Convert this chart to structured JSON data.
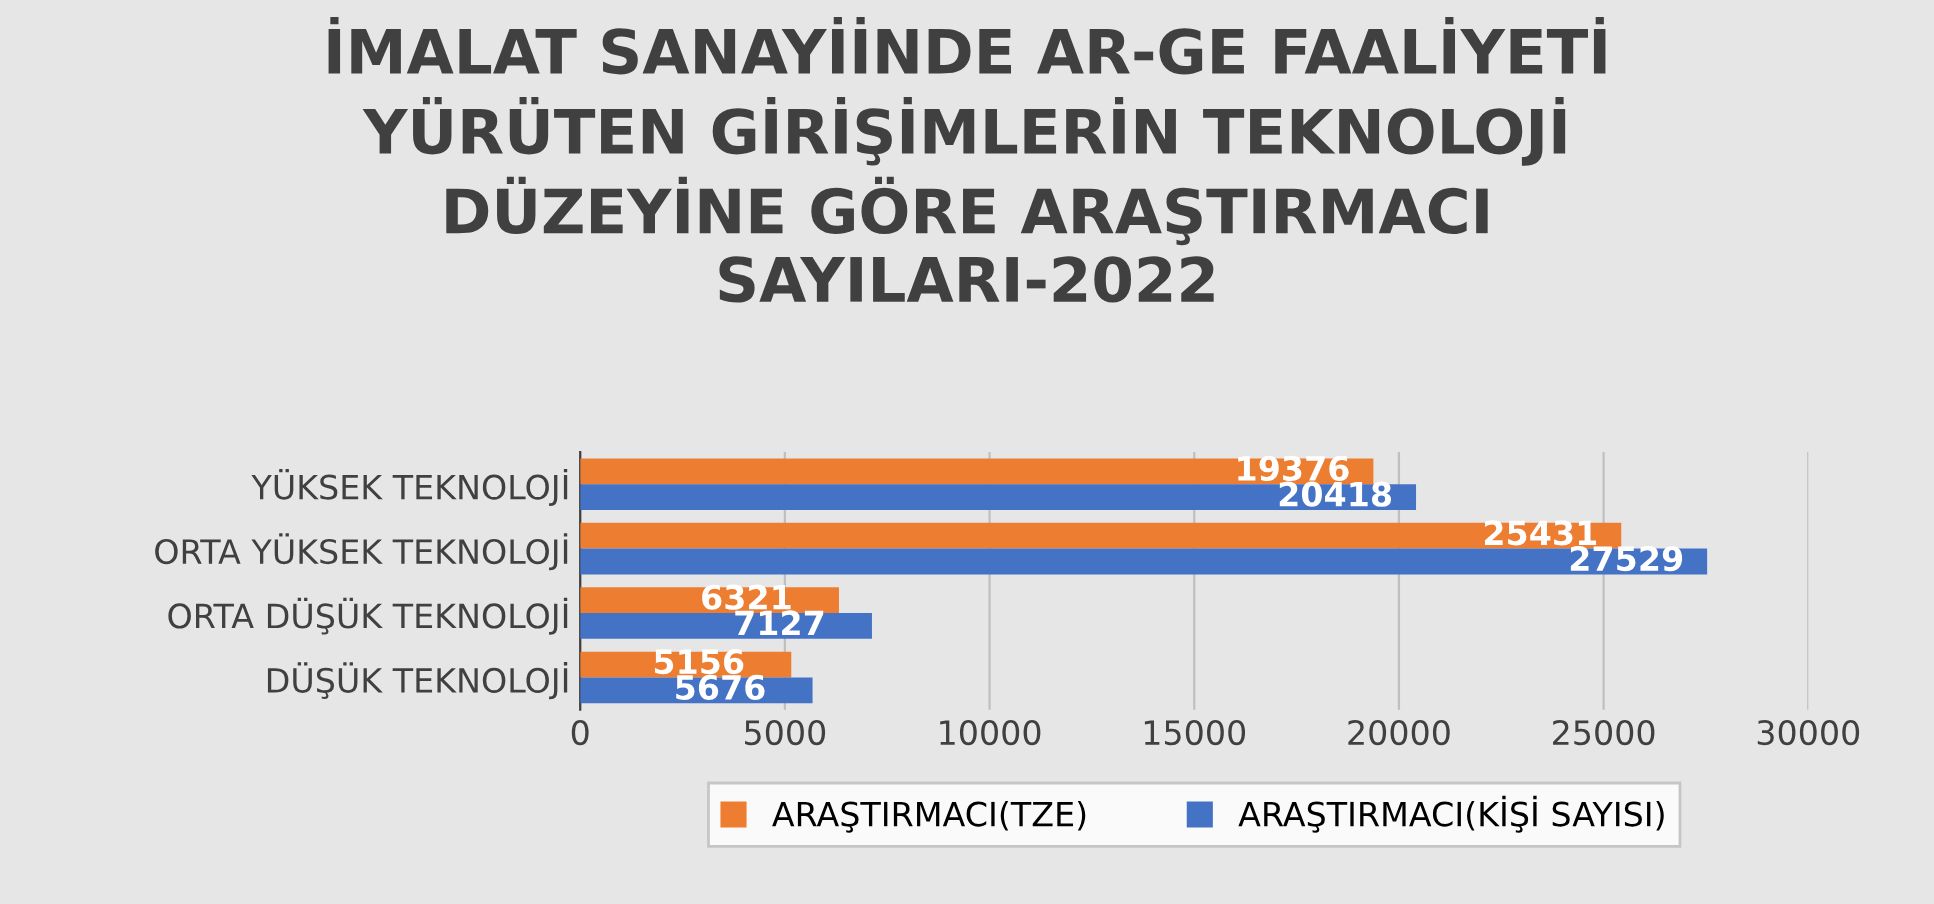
{
  "chart_data": {
    "type": "bar",
    "orientation": "horizontal",
    "title": "İMALAT SANAYİİNDE AR-GE FAALİYETİ\nYÜRÜTEN GİRİŞİMLERİN TEKNOLOJİ\nDÜZEYİNE GÖRE ARAŞTIRMACI\nSAYILARI-2022",
    "categories": [
      "YÜKSEK TEKNOLOJİ",
      "ORTA YÜKSEK TEKNOLOJİ",
      "ORTA DÜŞÜK TEKNOLOJİ",
      "DÜŞÜK TEKNOLOJİ"
    ],
    "series": [
      {
        "name": "ARAŞTIRMACI(TZE)",
        "color": "#ed7d31",
        "values": [
          19376,
          25431,
          6321,
          5156
        ]
      },
      {
        "name": "ARAŞTIRMACI(KİŞİ SAYISI)",
        "color": "#4472c4",
        "values": [
          20418,
          27529,
          7127,
          5676
        ]
      }
    ],
    "xlim": [
      0,
      30000
    ],
    "xticks": [
      0,
      5000,
      10000,
      15000,
      20000,
      25000,
      30000
    ],
    "grid": "x",
    "legend": "bottom",
    "data_labels": true
  }
}
